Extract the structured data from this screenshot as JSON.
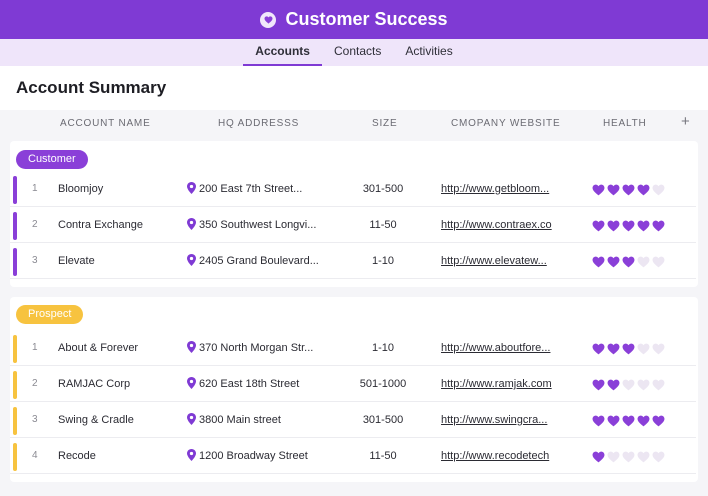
{
  "app": {
    "title": "Customer Success",
    "logo_icon": "heart-icon"
  },
  "tabs": [
    {
      "label": "Accounts",
      "active": true
    },
    {
      "label": "Contacts",
      "active": false
    },
    {
      "label": "Activities",
      "active": false
    }
  ],
  "page": {
    "title": "Account Summary"
  },
  "columns": {
    "name": "ACCOUNT NAME",
    "address": "HQ ADDRESSS",
    "size": "SIZE",
    "website": "CMOPANY WEBSITE",
    "health": "HEALTH",
    "add": "+"
  },
  "colors": {
    "accent": "#7f3ad4",
    "customer": "#8a3fd8",
    "prospect": "#f7c33f",
    "heart_on": "#8a3fd8",
    "heart_off": "#ece6f2"
  },
  "groups": [
    {
      "label": "Customer",
      "rows": [
        {
          "num": "1",
          "name": "Bloomjoy",
          "address": "200 East 7th Street...",
          "size": "301-500",
          "website": "http://www.getbloom...",
          "health": 4
        },
        {
          "num": "2",
          "name": "Contra Exchange",
          "address": "350 Southwest Longvi...",
          "size": "11-50",
          "website": "http://www.contraex.co",
          "health": 5
        },
        {
          "num": "3",
          "name": "Elevate",
          "address": "2405 Grand Boulevard...",
          "size": "1-10",
          "website": "http://www.elevatew...",
          "health": 3
        }
      ]
    },
    {
      "label": "Prospect",
      "rows": [
        {
          "num": "1",
          "name": "About & Forever",
          "address": "370 North Morgan Str...",
          "size": "1-10",
          "website": "http://www.aboutfore...",
          "health": 3
        },
        {
          "num": "2",
          "name": "RAMJAC Corp",
          "address": "620 East 18th Street",
          "size": "501-1000",
          "website": "http://www.ramjak.com",
          "health": 2
        },
        {
          "num": "3",
          "name": "Swing & Cradle",
          "address": "3800 Main street",
          "size": "301-500",
          "website": "http://www.swingcra...",
          "health": 5
        },
        {
          "num": "4",
          "name": "Recode",
          "address": "1200 Broadway Street",
          "size": "11-50",
          "website": "http://www.recodetech",
          "health": 1
        }
      ]
    }
  ]
}
